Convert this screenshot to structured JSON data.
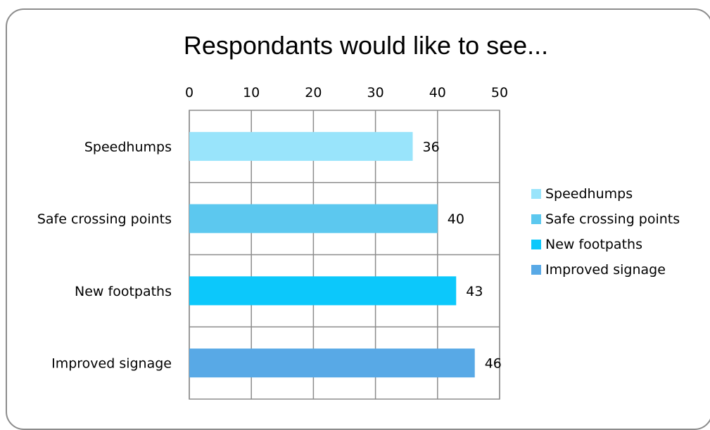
{
  "chart_data": {
    "type": "bar",
    "orientation": "horizontal",
    "title": "Respondants would like to see...",
    "categories": [
      "Speedhumps",
      "Safe crossing points",
      "New footpaths",
      "Improved signage"
    ],
    "values": [
      36,
      40,
      43,
      46
    ],
    "colors": [
      "#99e4fb",
      "#5cc8ef",
      "#0cc8fb",
      "#58a9e6"
    ],
    "xlim": [
      0,
      50
    ],
    "x_ticks": [
      0,
      10,
      20,
      30,
      40,
      50
    ],
    "x_tick_labels": [
      "0",
      "10",
      "20",
      "30",
      "40",
      "50"
    ],
    "x_axis_position": "top",
    "grid": true,
    "data_labels": [
      "36",
      "40",
      "43",
      "46"
    ],
    "legend": {
      "placement": "right",
      "entries": [
        "Speedhumps",
        "Safe crossing points",
        "New footpaths",
        "Improved signage"
      ]
    }
  }
}
